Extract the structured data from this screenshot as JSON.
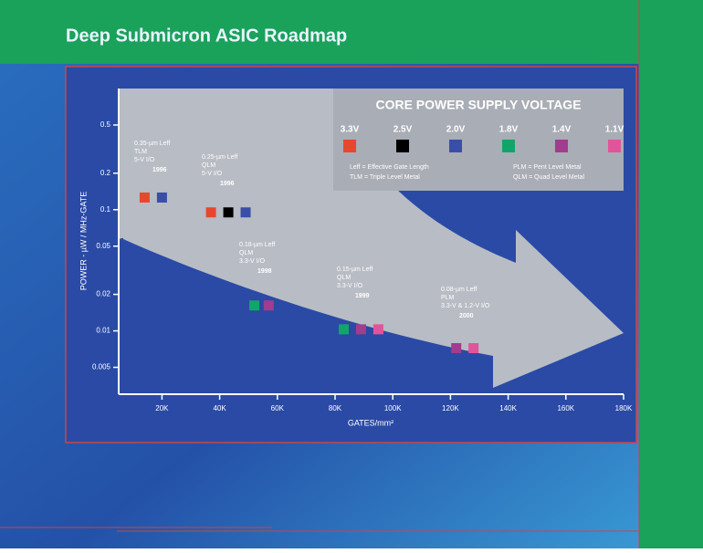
{
  "chart_data": {
    "type": "scatter",
    "title": "Deep Submicron ASIC Roadmap",
    "x_label": "GATES/mm²",
    "y_label": "POWER - µW / MHz-GATE",
    "log_y": true,
    "xlim": [
      5000,
      180000
    ],
    "xticks": [
      {
        "value": 20000,
        "label": "20K"
      },
      {
        "value": 40000,
        "label": "40K"
      },
      {
        "value": 60000,
        "label": "60K"
      },
      {
        "value": 80000,
        "label": "80K"
      },
      {
        "value": 100000,
        "label": "100K"
      },
      {
        "value": 120000,
        "label": "120K"
      },
      {
        "value": 140000,
        "label": "140K"
      },
      {
        "value": 160000,
        "label": "160K"
      },
      {
        "value": 180000,
        "label": "180K"
      }
    ],
    "ylim": [
      0.003,
      1
    ],
    "yticks": [
      0.005,
      0.01,
      0.02,
      0.05,
      0.1,
      0.2,
      0.5
    ],
    "legend_title": "CORE POWER SUPPLY VOLTAGE",
    "legend_notes": [
      "Leff = Effective Gate Length",
      "TLM = Triple Level Metal",
      "PLM = Pent Level Metal",
      "QLM = Quad Level Metal"
    ],
    "series": [
      {
        "name": "3.3V",
        "color": "#e8472f",
        "x": [
          14000,
          37000
        ],
        "values": [
          0.126,
          0.095
        ]
      },
      {
        "name": "2.5V",
        "color": "#000000",
        "x": [
          43000
        ],
        "values": [
          0.095
        ]
      },
      {
        "name": "2.0V",
        "color": "#3a4ea8",
        "x": [
          20000,
          49000
        ],
        "values": [
          0.126,
          0.095
        ]
      },
      {
        "name": "1.8V",
        "color": "#11a56a",
        "x": [
          52000,
          83000
        ],
        "values": [
          0.0162,
          0.0103
        ]
      },
      {
        "name": "1.4V",
        "color": "#a23c8e",
        "x": [
          57000,
          89000,
          122000
        ],
        "values": [
          0.0162,
          0.0103,
          0.0072
        ]
      },
      {
        "name": "1.1V",
        "color": "#e0559a",
        "x": [
          95000,
          128000
        ],
        "values": [
          0.0103,
          0.0072
        ]
      }
    ],
    "annotations": [
      {
        "lines": [
          "0.35-µm Leff",
          "TLM",
          "5-V I/O",
          "1996"
        ]
      },
      {
        "lines": [
          "0.25-µm Leff",
          "QLM",
          "5-V I/O",
          "1996"
        ]
      },
      {
        "lines": [
          "0.18-µm Leff",
          "QLM",
          "3.3-V I/O",
          "1998"
        ]
      },
      {
        "lines": [
          "0.15-µm Leff",
          "QLM",
          "3.3-V I/O",
          "1999"
        ]
      },
      {
        "lines": [
          "0.08-µm Leff",
          "PLM",
          "3.3-V & 1.2-V I/O",
          "2000"
        ]
      }
    ]
  }
}
